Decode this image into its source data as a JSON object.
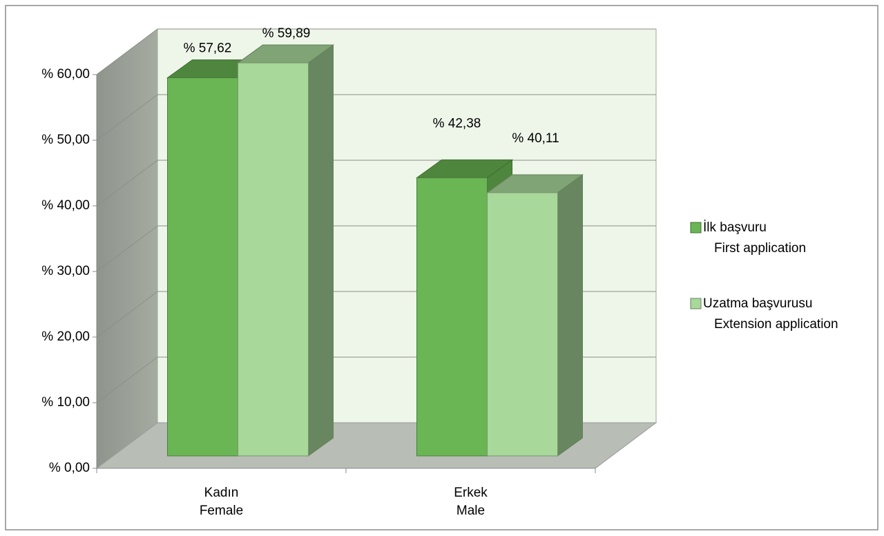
{
  "chart_data": {
    "type": "bar3d",
    "categories": [
      "Kadın\nFemale",
      "Erkek\nMale"
    ],
    "series": [
      {
        "name": "İlk başvuru\nFirst application",
        "color": "#6ab554",
        "values": [
          57.62,
          42.38
        ],
        "value_labels": [
          "% 57,62",
          "% 42,38"
        ]
      },
      {
        "name": "Uzatma  başvurusu\nExtension application",
        "color": "#a8d89a",
        "values": [
          59.89,
          40.11
        ],
        "value_labels": [
          "% 59,89",
          "% 40,11"
        ]
      }
    ],
    "ylim": [
      0,
      60
    ],
    "yticks": [
      {
        "value": 0,
        "label": "% 0,00"
      },
      {
        "value": 10,
        "label": "% 10,00"
      },
      {
        "value": 20,
        "label": "% 20,00"
      },
      {
        "value": 30,
        "label": "% 30,00"
      },
      {
        "value": 40,
        "label": "% 40,00"
      },
      {
        "value": 50,
        "label": "% 50,00"
      },
      {
        "value": 60,
        "label": "% 60,00"
      }
    ],
    "grid": true,
    "legend": "right"
  }
}
